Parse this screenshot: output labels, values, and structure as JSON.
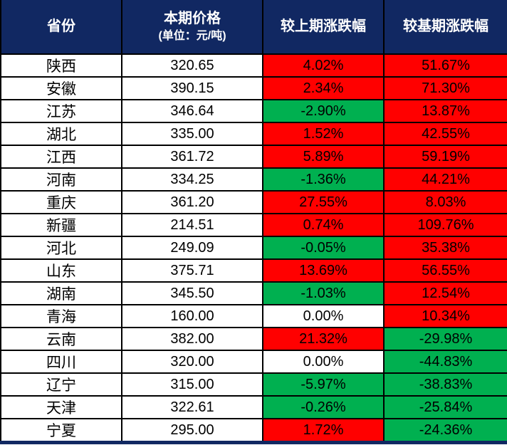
{
  "colors": {
    "header_bg": "#112862",
    "header_text": "#FFFFFF",
    "up_bg": "#FF0000",
    "down_bg": "#00B050",
    "flat_bg": "#FFFFFF",
    "border": "#000000",
    "body_text": "#000000"
  },
  "table": {
    "columns": {
      "province": {
        "label": "省份"
      },
      "price": {
        "label": "本期价格",
        "sublabel": "(单位：元/吨)"
      },
      "chg_prev": {
        "label": "较上期涨跌幅"
      },
      "chg_base": {
        "label": "较基期涨跌幅"
      }
    },
    "rows": [
      {
        "province": "陕西",
        "price": "320.65",
        "chg_prev": {
          "text": "4.02%",
          "trend": "up"
        },
        "chg_base": {
          "text": "51.67%",
          "trend": "up"
        }
      },
      {
        "province": "安徽",
        "price": "390.15",
        "chg_prev": {
          "text": "2.34%",
          "trend": "up"
        },
        "chg_base": {
          "text": "71.30%",
          "trend": "up"
        }
      },
      {
        "province": "江苏",
        "price": "346.64",
        "chg_prev": {
          "text": "-2.90%",
          "trend": "down"
        },
        "chg_base": {
          "text": "13.87%",
          "trend": "up"
        }
      },
      {
        "province": "湖北",
        "price": "335.00",
        "chg_prev": {
          "text": "1.52%",
          "trend": "up"
        },
        "chg_base": {
          "text": "42.55%",
          "trend": "up"
        }
      },
      {
        "province": "江西",
        "price": "361.72",
        "chg_prev": {
          "text": "5.89%",
          "trend": "up"
        },
        "chg_base": {
          "text": "59.19%",
          "trend": "up"
        }
      },
      {
        "province": "河南",
        "price": "334.25",
        "chg_prev": {
          "text": "-1.36%",
          "trend": "down"
        },
        "chg_base": {
          "text": "44.21%",
          "trend": "up"
        }
      },
      {
        "province": "重庆",
        "price": "361.20",
        "chg_prev": {
          "text": "27.55%",
          "trend": "up"
        },
        "chg_base": {
          "text": "8.03%",
          "trend": "up"
        }
      },
      {
        "province": "新疆",
        "price": "214.51",
        "chg_prev": {
          "text": "0.74%",
          "trend": "up"
        },
        "chg_base": {
          "text": "109.76%",
          "trend": "up"
        }
      },
      {
        "province": "河北",
        "price": "249.09",
        "chg_prev": {
          "text": "-0.05%",
          "trend": "down"
        },
        "chg_base": {
          "text": "35.38%",
          "trend": "up"
        }
      },
      {
        "province": "山东",
        "price": "375.71",
        "chg_prev": {
          "text": "13.69%",
          "trend": "up"
        },
        "chg_base": {
          "text": "56.55%",
          "trend": "up"
        }
      },
      {
        "province": "湖南",
        "price": "345.50",
        "chg_prev": {
          "text": "-1.03%",
          "trend": "down"
        },
        "chg_base": {
          "text": "12.54%",
          "trend": "up"
        }
      },
      {
        "province": "青海",
        "price": "160.00",
        "chg_prev": {
          "text": "0.00%",
          "trend": "flat"
        },
        "chg_base": {
          "text": "10.34%",
          "trend": "up"
        }
      },
      {
        "province": "云南",
        "price": "382.00",
        "chg_prev": {
          "text": "21.32%",
          "trend": "up"
        },
        "chg_base": {
          "text": "-29.98%",
          "trend": "down"
        }
      },
      {
        "province": "四川",
        "price": "320.00",
        "chg_prev": {
          "text": "0.00%",
          "trend": "flat"
        },
        "chg_base": {
          "text": "-44.83%",
          "trend": "down"
        }
      },
      {
        "province": "辽宁",
        "price": "315.00",
        "chg_prev": {
          "text": "-5.97%",
          "trend": "down"
        },
        "chg_base": {
          "text": "-38.83%",
          "trend": "down"
        }
      },
      {
        "province": "天津",
        "price": "322.61",
        "chg_prev": {
          "text": "-0.26%",
          "trend": "down"
        },
        "chg_base": {
          "text": "-25.84%",
          "trend": "down"
        }
      },
      {
        "province": "宁夏",
        "price": "295.00",
        "chg_prev": {
          "text": "1.72%",
          "trend": "up"
        },
        "chg_base": {
          "text": "-24.36%",
          "trend": "down"
        }
      }
    ]
  },
  "chart_data": {
    "type": "table",
    "title": "",
    "columns": [
      "省份",
      "本期价格(单位：元/吨)",
      "较上期涨跌幅",
      "较基期涨跌幅"
    ],
    "rows": [
      [
        "陕西",
        320.65,
        "4.02%",
        "51.67%"
      ],
      [
        "安徽",
        390.15,
        "2.34%",
        "71.30%"
      ],
      [
        "江苏",
        346.64,
        "-2.90%",
        "13.87%"
      ],
      [
        "湖北",
        335.0,
        "1.52%",
        "42.55%"
      ],
      [
        "江西",
        361.72,
        "5.89%",
        "59.19%"
      ],
      [
        "河南",
        334.25,
        "-1.36%",
        "44.21%"
      ],
      [
        "重庆",
        361.2,
        "27.55%",
        "8.03%"
      ],
      [
        "新疆",
        214.51,
        "0.74%",
        "109.76%"
      ],
      [
        "河北",
        249.09,
        "-0.05%",
        "35.38%"
      ],
      [
        "山东",
        375.71,
        "13.69%",
        "56.55%"
      ],
      [
        "湖南",
        345.5,
        "-1.03%",
        "12.54%"
      ],
      [
        "青海",
        160.0,
        "0.00%",
        "10.34%"
      ],
      [
        "云南",
        382.0,
        "21.32%",
        "-29.98%"
      ],
      [
        "四川",
        320.0,
        "0.00%",
        "-44.83%"
      ],
      [
        "辽宁",
        315.0,
        "-5.97%",
        "-38.83%"
      ],
      [
        "天津",
        322.61,
        "-0.26%",
        "-25.84%"
      ],
      [
        "宁夏",
        295.0,
        "1.72%",
        "-24.36%"
      ]
    ],
    "legend_note": "红色=上涨, 绿色=下跌, 白色=持平"
  }
}
